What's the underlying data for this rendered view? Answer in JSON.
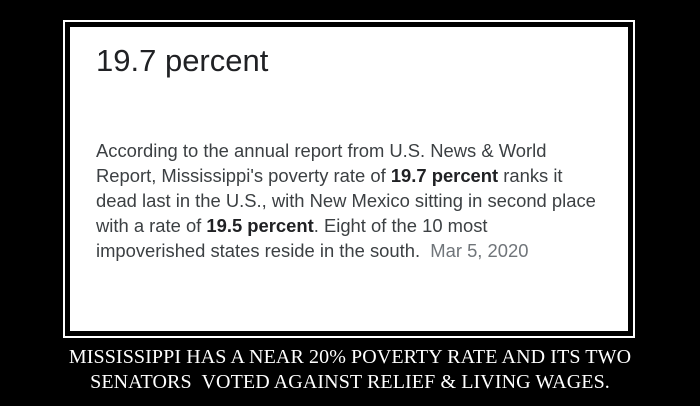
{
  "card": {
    "headline": "19.7 percent",
    "snippet": {
      "part1": "According to the annual report from U.S. News & World Report, Mississippi's poverty rate of ",
      "bold1": "19.7 percent",
      "part2": " ranks it dead last in the U.S., with New Mexico sitting in second place with a rate of ",
      "bold2": "19.5 percent",
      "part3": ". Eight of the 10 most impoverished states reside in the south.",
      "date": "Mar 5, 2020"
    }
  },
  "caption": {
    "line1": "MISSISSIPPI HAS A NEAR 20% POVERTY RATE AND ITS TWO",
    "line2": "SENATORS  VOTED AGAINST RELIEF & LIVING WAGES."
  },
  "colors": {
    "background": "#000000",
    "frame": "#ffffff",
    "card": "#ffffff",
    "headline_text": "#202124",
    "body_text": "#3c4043",
    "date_text": "#70757a",
    "caption_text": "#ffffff"
  }
}
